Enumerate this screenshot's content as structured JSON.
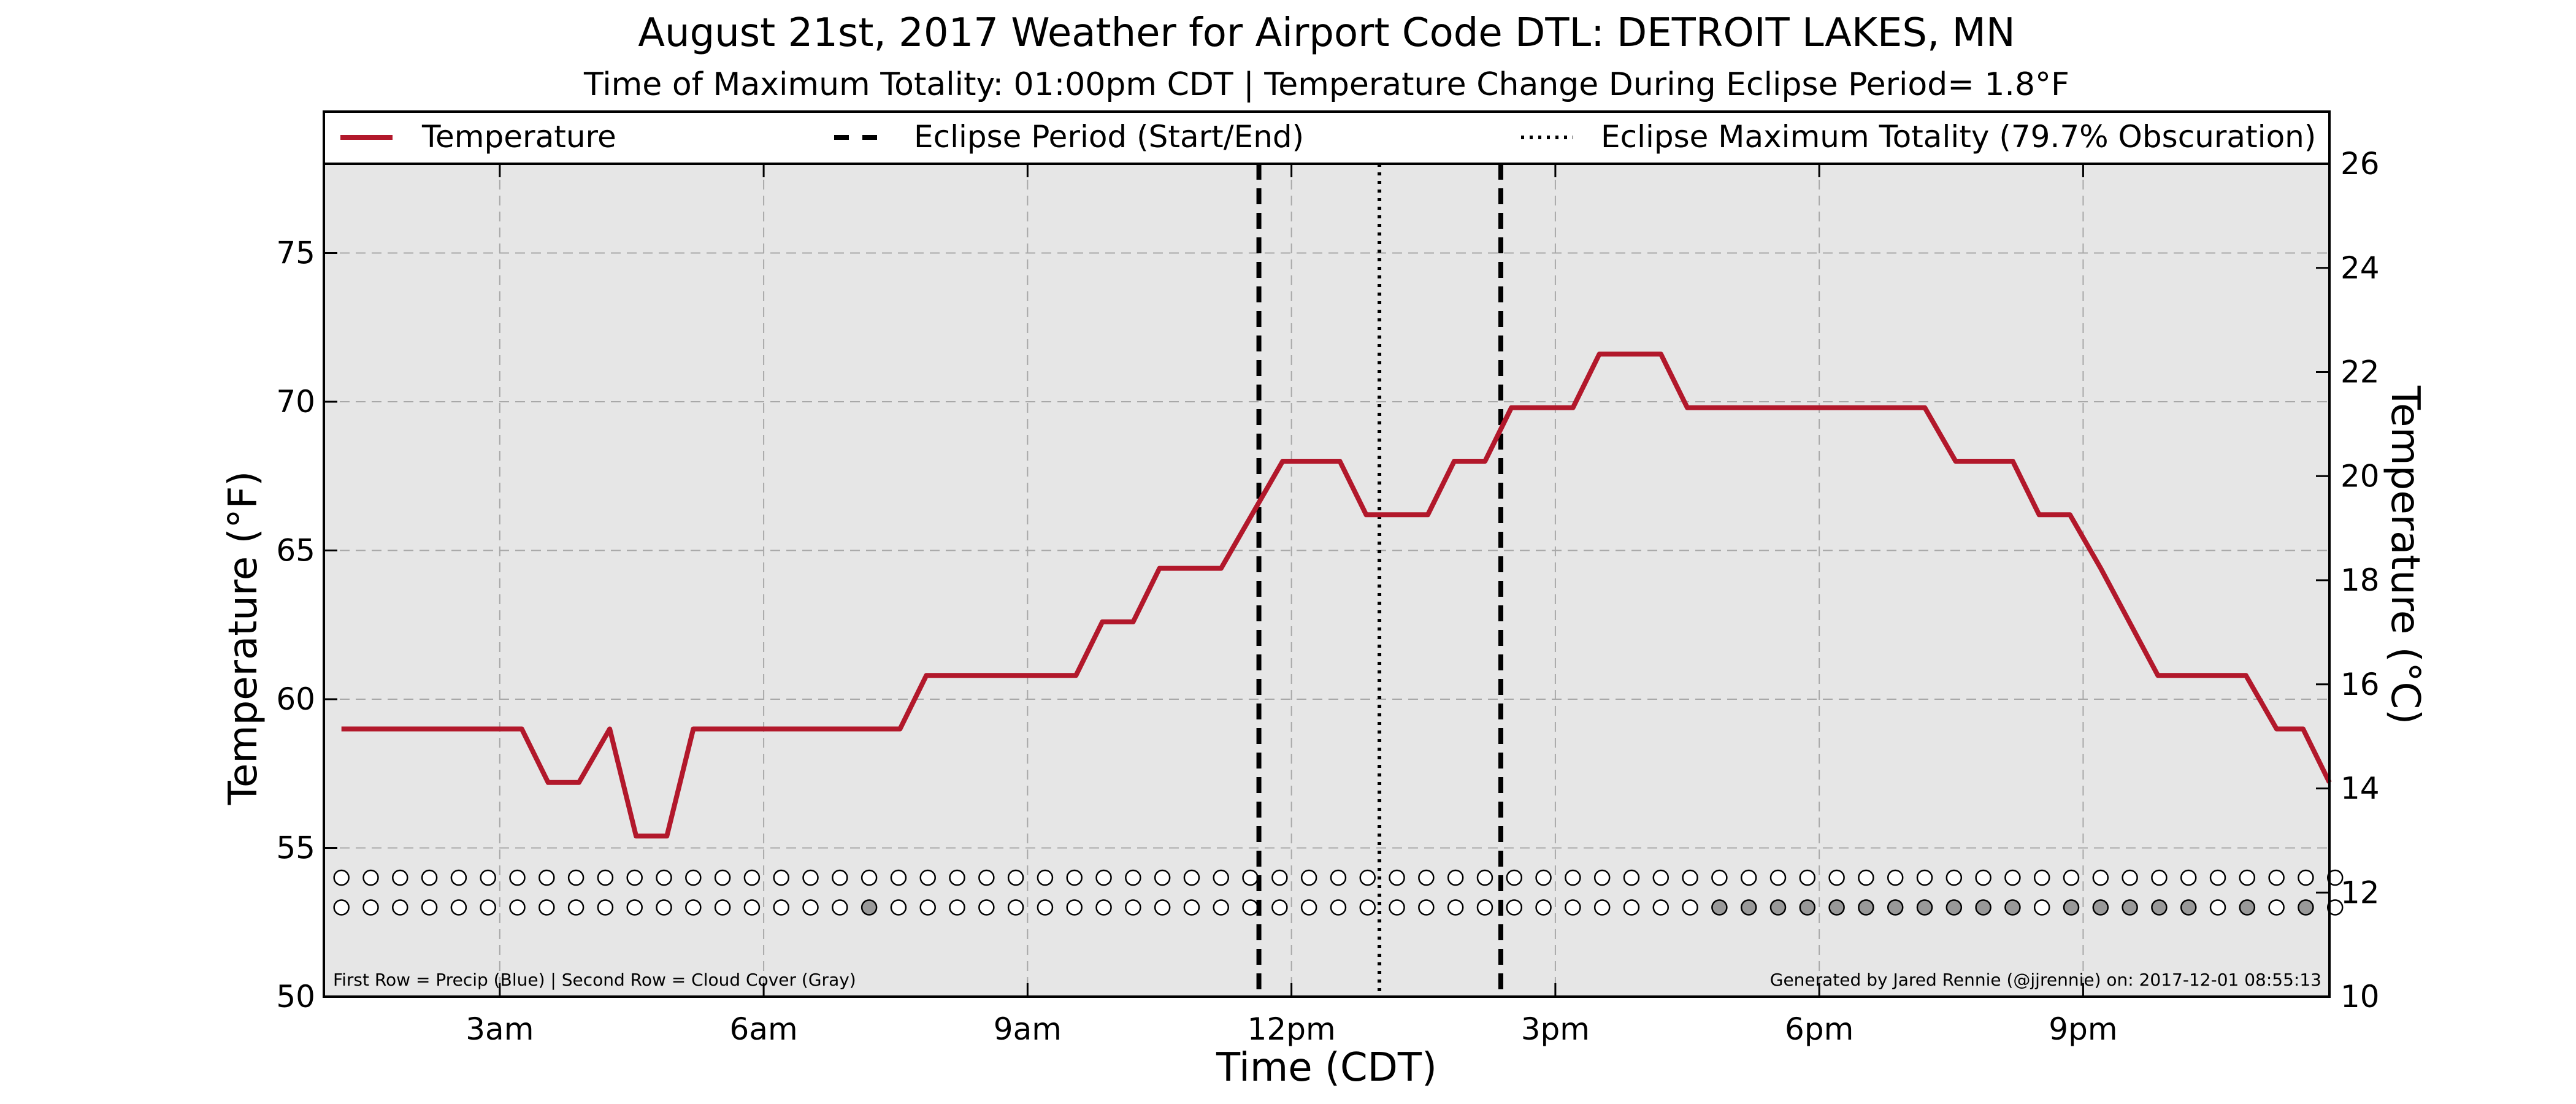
{
  "chart_data": {
    "type": "line",
    "title": "August 21st, 2017 Weather for Airport Code DTL: DETROIT LAKES, MN",
    "subtitle": "Time of Maximum Totality: 01:00pm CDT | Temperature Change During Eclipse Period= 1.8°F",
    "xlabel": "Time (CDT)",
    "ylabel": "Temperature (°F)",
    "y2label": "Temperature (°C)",
    "xlim": [
      1.0,
      23.8
    ],
    "ylim": [
      50,
      78
    ],
    "y2lim": [
      10,
      26
    ],
    "x_ticks": [
      {
        "x": 3,
        "label": "3am"
      },
      {
        "x": 6,
        "label": "6am"
      },
      {
        "x": 9,
        "label": "9am"
      },
      {
        "x": 12,
        "label": "12pm"
      },
      {
        "x": 15,
        "label": "3pm"
      },
      {
        "x": 18,
        "label": "6pm"
      },
      {
        "x": 21,
        "label": "9pm"
      }
    ],
    "y_ticks": [
      50,
      55,
      60,
      65,
      70,
      75
    ],
    "y2_ticks": [
      10,
      12,
      14,
      16,
      18,
      20,
      22,
      24,
      26
    ],
    "grid": true,
    "legend_position": "top",
    "legend": {
      "temperature": "Temperature",
      "eclipse_period": "Eclipse Period (Start/End)",
      "max_totality": "Eclipse Maximum Totality (79.7% Obscuration)"
    },
    "series": [
      {
        "name": "Temperature",
        "color": "#b2182b",
        "points": [
          [
            1.2,
            59.0
          ],
          [
            3.25,
            59.0
          ],
          [
            3.55,
            57.2
          ],
          [
            3.9,
            57.2
          ],
          [
            4.25,
            59.0
          ],
          [
            4.55,
            55.4
          ],
          [
            4.9,
            55.4
          ],
          [
            5.2,
            59.0
          ],
          [
            7.55,
            59.0
          ],
          [
            7.85,
            60.8
          ],
          [
            9.55,
            60.8
          ],
          [
            9.85,
            62.6
          ],
          [
            10.2,
            62.6
          ],
          [
            10.5,
            64.4
          ],
          [
            11.2,
            64.4
          ],
          [
            11.9,
            68.0
          ],
          [
            12.55,
            68.0
          ],
          [
            12.85,
            66.2
          ],
          [
            13.55,
            66.2
          ],
          [
            13.85,
            68.0
          ],
          [
            14.2,
            68.0
          ],
          [
            14.5,
            69.8
          ],
          [
            15.2,
            69.8
          ],
          [
            15.5,
            71.6
          ],
          [
            16.2,
            71.6
          ],
          [
            16.5,
            69.8
          ],
          [
            19.2,
            69.8
          ],
          [
            19.55,
            68.0
          ],
          [
            20.2,
            68.0
          ],
          [
            20.5,
            66.2
          ],
          [
            20.85,
            66.2
          ],
          [
            21.2,
            64.4
          ],
          [
            21.85,
            60.8
          ],
          [
            22.85,
            60.8
          ],
          [
            23.2,
            59.0
          ],
          [
            23.5,
            59.0
          ],
          [
            23.8,
            57.2
          ]
        ]
      }
    ],
    "eclipse_start": 11.63,
    "eclipse_end": 14.38,
    "max_totality": 13.0,
    "marker_rows": {
      "start": 1.2,
      "step": 0.3333,
      "count": 69,
      "precip_y": 54.0,
      "cloud_y": 53.0,
      "precip_filled": [],
      "cloud_filled": [
        18,
        47,
        48,
        49,
        50,
        51,
        52,
        53,
        54,
        55,
        56,
        57,
        59,
        60,
        61,
        62,
        63,
        65,
        67,
        69
      ]
    },
    "colors": {
      "plot_background": "#e6e6e6",
      "cloud_cover_filled": "#999999",
      "marker_empty": "#ffffff"
    },
    "annotations": {
      "left_note": "First Row = Precip (Blue) | Second Row = Cloud Cover (Gray)",
      "right_note": "Generated by Jared Rennie (@jjrennie) on: 2017-12-01 08:55:13"
    }
  }
}
